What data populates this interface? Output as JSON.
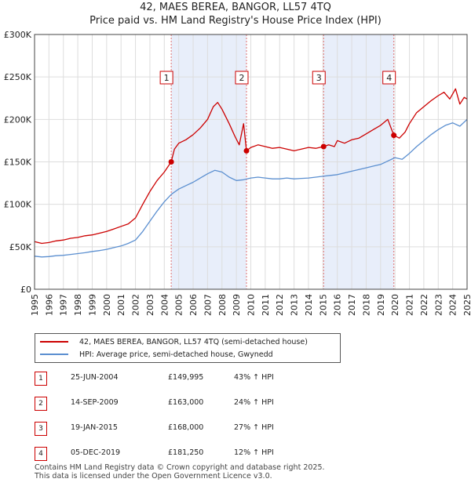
{
  "chart_data": {
    "type": "line",
    "title": "42, MAES BEREA, BANGOR, LL57 4TQ",
    "subtitle": "Price paid vs. HM Land Registry's House Price Index (HPI)",
    "xlim": [
      1995,
      2025
    ],
    "ylim": [
      0,
      300000
    ],
    "x_ticks": [
      "1995",
      "1996",
      "1997",
      "1998",
      "1999",
      "2000",
      "2001",
      "2002",
      "2003",
      "2004",
      "2005",
      "2006",
      "2007",
      "2008",
      "2009",
      "2010",
      "2011",
      "2012",
      "2013",
      "2014",
      "2015",
      "2016",
      "2017",
      "2018",
      "2019",
      "2020",
      "2021",
      "2022",
      "2023",
      "2024",
      "2025"
    ],
    "y_ticks": [
      {
        "value": 0,
        "label": "£0"
      },
      {
        "value": 50000,
        "label": "£50K"
      },
      {
        "value": 100000,
        "label": "£100K"
      },
      {
        "value": 150000,
        "label": "£150K"
      },
      {
        "value": 200000,
        "label": "£200K"
      },
      {
        "value": 250000,
        "label": "£250K"
      },
      {
        "value": 300000,
        "label": "£300K"
      }
    ],
    "grid": true,
    "shaded_periods": [
      [
        2004.48,
        2009.7
      ],
      [
        2015.05,
        2019.92
      ]
    ],
    "series": [
      {
        "name": "42, MAES BEREA, BANGOR, LL57 4TQ (semi-detached house)",
        "color": "#cc0000",
        "x": [
          1995,
          1995.5,
          1996,
          1996.5,
          1997,
          1997.5,
          1998,
          1998.5,
          1999,
          1999.5,
          2000,
          2000.5,
          2001,
          2001.5,
          2002,
          2002.5,
          2003,
          2003.5,
          2004,
          2004.48,
          2004.7,
          2005,
          2005.5,
          2006,
          2006.5,
          2007,
          2007.4,
          2007.7,
          2008,
          2008.5,
          2008.9,
          2009.2,
          2009.5,
          2009.7,
          2010,
          2010.5,
          2011,
          2011.5,
          2012,
          2012.5,
          2013,
          2013.5,
          2014,
          2014.5,
          2015.05,
          2015.4,
          2015.8,
          2016,
          2016.5,
          2017,
          2017.5,
          2018,
          2018.5,
          2019,
          2019.5,
          2019.92,
          2020.3,
          2020.7,
          2021,
          2021.5,
          2022,
          2022.5,
          2023,
          2023.4,
          2023.8,
          2024.2,
          2024.5,
          2024.8,
          2025
        ],
        "values": [
          56000,
          54000,
          55000,
          57000,
          58000,
          60000,
          61000,
          63000,
          64000,
          66000,
          68000,
          71000,
          74000,
          77000,
          84000,
          100000,
          115000,
          128000,
          138000,
          149995,
          165000,
          172000,
          176000,
          182000,
          190000,
          200000,
          215000,
          220000,
          212000,
          195000,
          180000,
          170000,
          195000,
          163000,
          167000,
          170000,
          168000,
          166000,
          167000,
          165000,
          163000,
          165000,
          167000,
          166000,
          168000,
          170000,
          168000,
          175000,
          172000,
          176000,
          178000,
          183000,
          188000,
          193000,
          200000,
          181250,
          178000,
          185000,
          195000,
          208000,
          215000,
          222000,
          228000,
          232000,
          224000,
          236000,
          218000,
          226000,
          224000
        ]
      },
      {
        "name": "HPI: Average price, semi-detached house, Gwynedd",
        "color": "#5b8fd0",
        "x": [
          1995,
          1995.5,
          1996,
          1996.5,
          1997,
          1997.5,
          1998,
          1998.5,
          1999,
          1999.5,
          2000,
          2000.5,
          2001,
          2001.5,
          2002,
          2002.5,
          2003,
          2003.5,
          2004,
          2004.5,
          2005,
          2005.5,
          2006,
          2006.5,
          2007,
          2007.5,
          2008,
          2008.5,
          2009,
          2009.5,
          2010,
          2010.5,
          2011,
          2011.5,
          2012,
          2012.5,
          2013,
          2013.5,
          2014,
          2014.5,
          2015,
          2015.5,
          2016,
          2016.5,
          2017,
          2017.5,
          2018,
          2018.5,
          2019,
          2019.5,
          2020,
          2020.5,
          2021,
          2021.5,
          2022,
          2022.5,
          2023,
          2023.5,
          2024,
          2024.5,
          2025
        ],
        "values": [
          39000,
          38000,
          38500,
          39500,
          40000,
          41000,
          42000,
          43000,
          44500,
          45500,
          47000,
          49000,
          51000,
          54000,
          58000,
          68000,
          80000,
          92000,
          103000,
          112000,
          118000,
          122000,
          126000,
          131000,
          136000,
          140000,
          138000,
          132000,
          128000,
          129000,
          131000,
          132000,
          131000,
          130000,
          130000,
          131000,
          130000,
          130500,
          131000,
          132000,
          133000,
          134000,
          135000,
          137000,
          139000,
          141000,
          143000,
          145000,
          147000,
          151000,
          155000,
          153000,
          160000,
          168000,
          175000,
          182000,
          188000,
          193000,
          196000,
          192000,
          200000
        ]
      }
    ],
    "events": [
      {
        "label": "1",
        "x": 2004.48,
        "price": 149995
      },
      {
        "label": "2",
        "x": 2009.7,
        "price": 163000
      },
      {
        "label": "3",
        "x": 2015.05,
        "price": 168000
      },
      {
        "label": "4",
        "x": 2019.92,
        "price": 181250
      }
    ]
  },
  "titles": {
    "line1": "42, MAES BEREA, BANGOR, LL57 4TQ",
    "line2": "Price paid vs. HM Land Registry's House Price Index (HPI)"
  },
  "legend": {
    "property": "42, MAES BEREA, BANGOR, LL57 4TQ (semi-detached house)",
    "hpi": "HPI: Average price, semi-detached house, Gwynedd"
  },
  "transactions": [
    {
      "num": "1",
      "date": "25-JUN-2004",
      "price": "£149,995",
      "hpi": "43% ↑ HPI"
    },
    {
      "num": "2",
      "date": "14-SEP-2009",
      "price": "£163,000",
      "hpi": "24% ↑ HPI"
    },
    {
      "num": "3",
      "date": "19-JAN-2015",
      "price": "£168,000",
      "hpi": "27% ↑ HPI"
    },
    {
      "num": "4",
      "date": "05-DEC-2019",
      "price": "£181,250",
      "hpi": "12% ↑ HPI"
    }
  ],
  "footer": {
    "line1": "Contains HM Land Registry data © Crown copyright and database right 2025.",
    "line2": "This data is licensed under the Open Government Licence v3.0."
  },
  "colors": {
    "property": "#cc0000",
    "hpi": "#5b8fd0",
    "shade": "#e8eefa",
    "grid": "#dddddd",
    "event_line": "#e07070"
  }
}
